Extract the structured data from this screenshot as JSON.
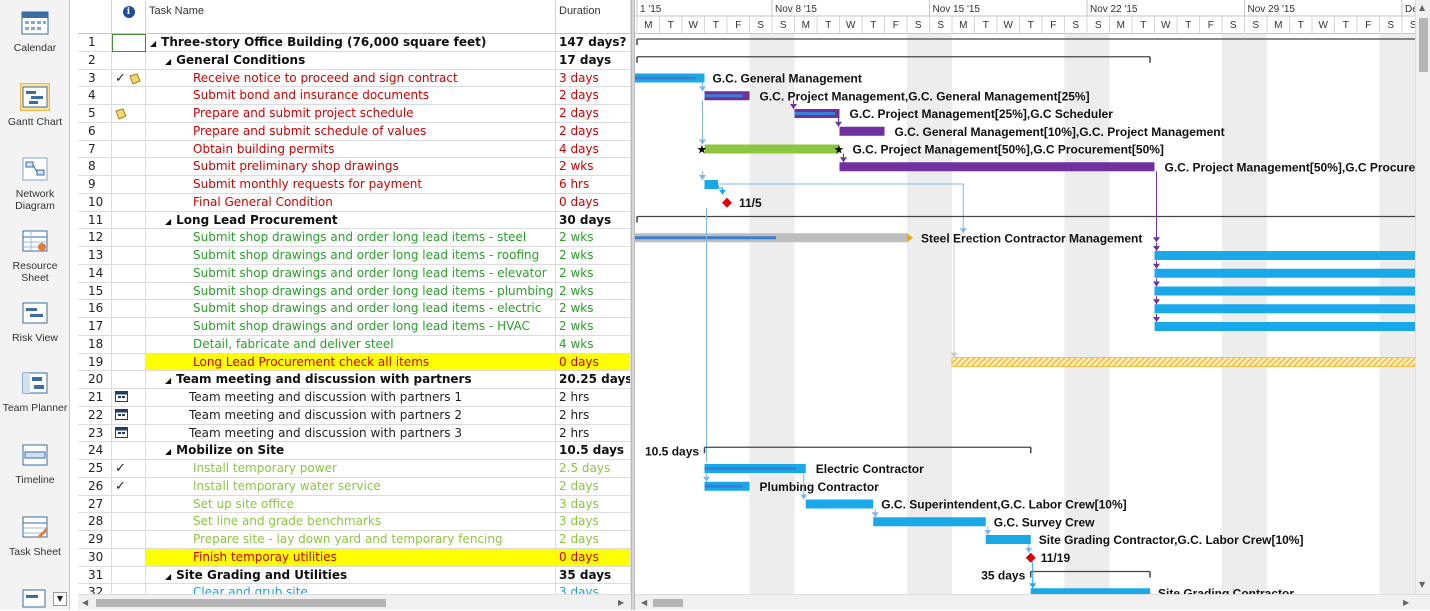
{
  "viewbar": {
    "items": [
      {
        "label": "Calendar",
        "icon": "calendar-icon"
      },
      {
        "label": "Gantt Chart",
        "icon": "gantt-chart-icon",
        "active": true
      },
      {
        "label": "Network Diagram",
        "icon": "network-diagram-icon"
      },
      {
        "label": "Resource Sheet",
        "icon": "resource-sheet-icon"
      },
      {
        "label": "Risk View",
        "icon": "risk-view-icon"
      },
      {
        "label": "Team Planner",
        "icon": "team-planner-icon"
      },
      {
        "label": "Timeline",
        "icon": "timeline-icon"
      },
      {
        "label": "Task Sheet",
        "icon": "task-sheet-icon"
      }
    ]
  },
  "table": {
    "headers": {
      "info": "ℹ",
      "name": "Task Name",
      "duration": "Duration"
    },
    "rows": [
      {
        "id": "1",
        "name": "Three-story Office Building (76,000 square feet)",
        "duration": "147 days?",
        "level": 0,
        "summary": true,
        "color": "#111111"
      },
      {
        "id": "2",
        "name": "General Conditions",
        "duration": "17 days",
        "level": 1,
        "summary": true,
        "color": "#111111"
      },
      {
        "id": "3",
        "name": "Receive notice to proceed and sign contract",
        "duration": "3 days",
        "level": 2,
        "color": "#d10000",
        "ind": "check-note"
      },
      {
        "id": "4",
        "name": "Submit bond and insurance documents",
        "duration": "2 days",
        "level": 2,
        "color": "#d10000"
      },
      {
        "id": "5",
        "name": "Prepare and submit project schedule",
        "duration": "2 days",
        "level": 2,
        "color": "#d10000",
        "ind": "note"
      },
      {
        "id": "6",
        "name": "Prepare and submit schedule of values",
        "duration": "2 days",
        "level": 2,
        "color": "#d10000"
      },
      {
        "id": "7",
        "name": "Obtain building permits",
        "duration": "4 days",
        "level": 2,
        "color": "#d10000"
      },
      {
        "id": "8",
        "name": "Submit preliminary shop drawings",
        "duration": "2 wks",
        "level": 2,
        "color": "#d10000"
      },
      {
        "id": "9",
        "name": "Submit monthly requests for payment",
        "duration": "6 hrs",
        "level": 2,
        "color": "#d10000"
      },
      {
        "id": "10",
        "name": "Final General Condition",
        "duration": "0 days",
        "level": 2,
        "color": "#d10000"
      },
      {
        "id": "11",
        "name": "Long Lead Procurement",
        "duration": "30 days",
        "level": 1,
        "summary": true,
        "color": "#111111"
      },
      {
        "id": "12",
        "name": "Submit shop drawings and order long lead items - steel",
        "duration": "2 wks",
        "level": 2,
        "color": "#2aa02a"
      },
      {
        "id": "13",
        "name": "Submit shop drawings and order long lead items - roofing",
        "duration": "2 wks",
        "level": 2,
        "color": "#2aa02a"
      },
      {
        "id": "14",
        "name": "Submit shop drawings and order long lead items - elevator",
        "duration": "2 wks",
        "level": 2,
        "color": "#2aa02a"
      },
      {
        "id": "15",
        "name": "Submit shop drawings and order long lead items - plumbing",
        "duration": "2 wks",
        "level": 2,
        "color": "#2aa02a"
      },
      {
        "id": "16",
        "name": "Submit shop drawings and order long lead items - electric",
        "duration": "2 wks",
        "level": 2,
        "color": "#2aa02a"
      },
      {
        "id": "17",
        "name": "Submit shop drawings and order long lead items - HVAC",
        "duration": "2 wks",
        "level": 2,
        "color": "#2aa02a"
      },
      {
        "id": "18",
        "name": "Detail, fabricate and deliver steel",
        "duration": "4 wks",
        "level": 2,
        "color": "#2aa02a"
      },
      {
        "id": "19",
        "name": "Long Lead Procurement check all items",
        "duration": "0 days",
        "level": 2,
        "color": "#d10000",
        "highlight": true
      },
      {
        "id": "20",
        "name": "Team meeting and discussion with partners",
        "duration": "20.25 days",
        "level": 1,
        "summary": true,
        "color": "#111111"
      },
      {
        "id": "21",
        "name": "Team meeting and discussion with partners 1",
        "duration": "2 hrs",
        "level": 2,
        "color": "#222222",
        "ind": "recurring"
      },
      {
        "id": "22",
        "name": "Team meeting and discussion with partners 2",
        "duration": "2 hrs",
        "level": 2,
        "color": "#222222",
        "ind": "recurring"
      },
      {
        "id": "23",
        "name": "Team meeting and discussion with partners 3",
        "duration": "2 hrs",
        "level": 2,
        "color": "#222222",
        "ind": "recurring"
      },
      {
        "id": "24",
        "name": "Mobilize on Site",
        "duration": "10.5 days",
        "level": 1,
        "summary": true,
        "color": "#111111"
      },
      {
        "id": "25",
        "name": "Install temporary power",
        "duration": "2.5 days",
        "level": 2,
        "color": "#8cc63f",
        "ind": "check"
      },
      {
        "id": "26",
        "name": "Install temporary water service",
        "duration": "2 days",
        "level": 2,
        "color": "#8cc63f",
        "ind": "check"
      },
      {
        "id": "27",
        "name": "Set up site office",
        "duration": "3 days",
        "level": 2,
        "color": "#8cc63f"
      },
      {
        "id": "28",
        "name": "Set line and grade benchmarks",
        "duration": "3 days",
        "level": 2,
        "color": "#8cc63f"
      },
      {
        "id": "29",
        "name": "Prepare site - lay down yard and temporary fencing",
        "duration": "2 days",
        "level": 2,
        "color": "#8cc63f"
      },
      {
        "id": "30",
        "name": "Finish temporay utilities",
        "duration": "0 days",
        "level": 2,
        "color": "#d10000",
        "highlight": true
      },
      {
        "id": "31",
        "name": "Site Grading and Utilities",
        "duration": "35 days",
        "level": 1,
        "summary": true,
        "color": "#111111"
      },
      {
        "id": "32",
        "name": "Clear and grub site",
        "duration": "3 days",
        "level": 2,
        "color": "#1a9fd8"
      }
    ]
  },
  "gantt": {
    "weeks": [
      {
        "label": "1 '15",
        "first_day_index": 0
      },
      {
        "label": "Nov 8 '15",
        "first_day_index": 6
      },
      {
        "label": "Nov 15 '15",
        "first_day_index": 13
      },
      {
        "label": "Nov 22 '15",
        "first_day_index": 20
      },
      {
        "label": "Nov 29 '15",
        "first_day_index": 27
      },
      {
        "label": "De",
        "first_day_index": 34
      }
    ],
    "days": [
      "M",
      "T",
      "W",
      "T",
      "F",
      "S",
      "S",
      "M",
      "T",
      "W",
      "T",
      "F",
      "S",
      "S",
      "M",
      "T",
      "W",
      "T",
      "F",
      "S",
      "S",
      "M",
      "T",
      "W",
      "T",
      "F",
      "S",
      "S",
      "M",
      "T",
      "W",
      "T",
      "F",
      "S",
      "S"
    ],
    "labels": {
      "r3": "G.C. General Management",
      "r4": "G.C. Project Management,G.C. General Management[25%]",
      "r5": "G.C. Project Management[25%],G.C Scheduler",
      "r6": "G.C. General Management[10%],G.C. Project Management",
      "r7": "G.C. Project Management[50%],G.C Procurement[50%]",
      "r8": "G.C. Project Management[50%],G.C Procure",
      "r10": "11/5",
      "r12": "Steel Erection Contractor Management",
      "r24": "10.5 days",
      "r25": "Electric Contractor",
      "r26": "Plumbing Contractor",
      "r27": "G.C. Superintendent,G.C. Labor Crew[10%]",
      "r28": "G.C. Survey Crew",
      "r29": "Site Grading Contractor,G.C. Labor Crew[10%]",
      "r30": "11/19",
      "r31": "35 days",
      "r32": "Site Grading Contractor"
    },
    "colors": {
      "critical": "#7030a0",
      "normal": "#19a8e8",
      "progress": "#3a7fd0",
      "green": "#8cc63f",
      "grey": "#bdbdbd",
      "milestone": "#e00000",
      "highlight": "#ffff00"
    }
  }
}
